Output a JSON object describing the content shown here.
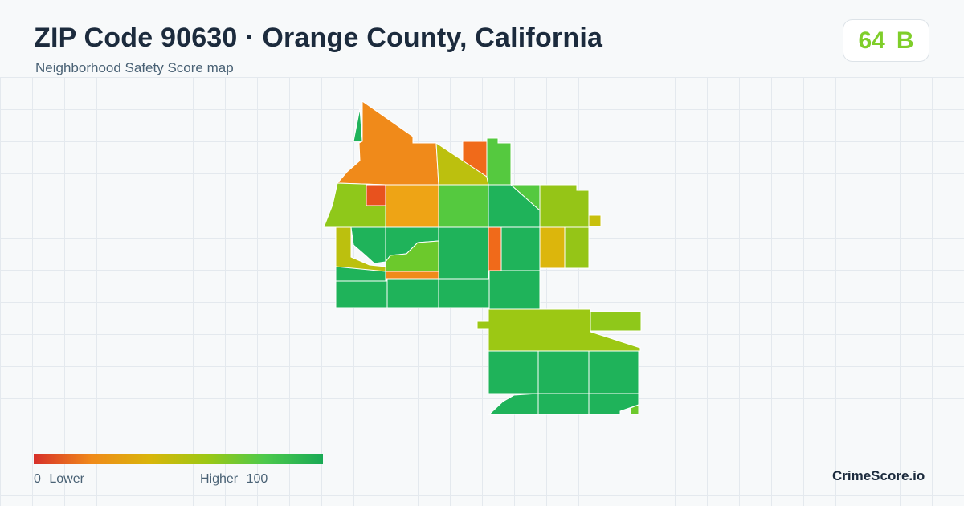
{
  "header": {
    "title": "ZIP Code 90630 · Orange County, California",
    "subtitle": "Neighborhood Safety Score map"
  },
  "score": {
    "value": "64",
    "grade": "B",
    "color": "#7fce2a"
  },
  "legend": {
    "min": "0",
    "min_label": "Lower",
    "max_label": "Higher",
    "max": "100",
    "gradient_colors": [
      "#d7302a",
      "#f08a1a",
      "#d9b50a",
      "#9cc814",
      "#4cc94c",
      "#1aaa55"
    ]
  },
  "brand": "CrimeScore.io"
}
